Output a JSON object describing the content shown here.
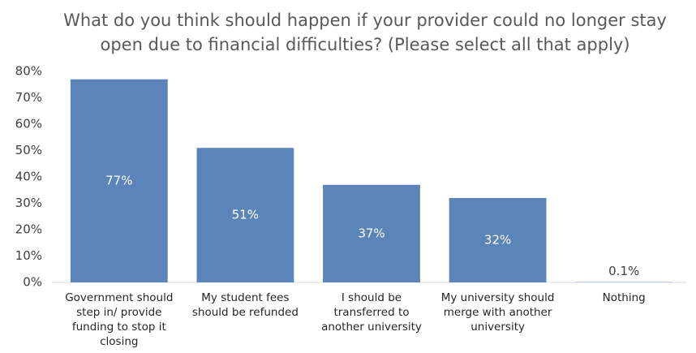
{
  "chart_data": {
    "type": "bar",
    "title": "What do you think should happen if your provider could no longer stay open due to financial difficulties? (Please select all that apply)",
    "categories": [
      "Government should step in/ provide funding to stop it closing",
      "My student fees should be refunded",
      "I should be transferred to another university",
      "My university should merge with another university",
      "Nothing"
    ],
    "values": [
      77,
      51,
      37,
      32,
      0.1
    ],
    "value_labels": [
      "77%",
      "51%",
      "37%",
      "32%",
      "0.1%"
    ],
    "color": "#5b84b8",
    "ylim": [
      0,
      80
    ],
    "yticks": [
      {
        "value": 0,
        "label": "0%"
      },
      {
        "value": 10,
        "label": "10%"
      },
      {
        "value": 20,
        "label": "20%"
      },
      {
        "value": 30,
        "label": "30%"
      },
      {
        "value": 40,
        "label": "40%"
      },
      {
        "value": 50,
        "label": "50%"
      },
      {
        "value": 60,
        "label": "60%"
      },
      {
        "value": 70,
        "label": "70%"
      },
      {
        "value": 80,
        "label": "80%"
      }
    ],
    "grid": false
  }
}
